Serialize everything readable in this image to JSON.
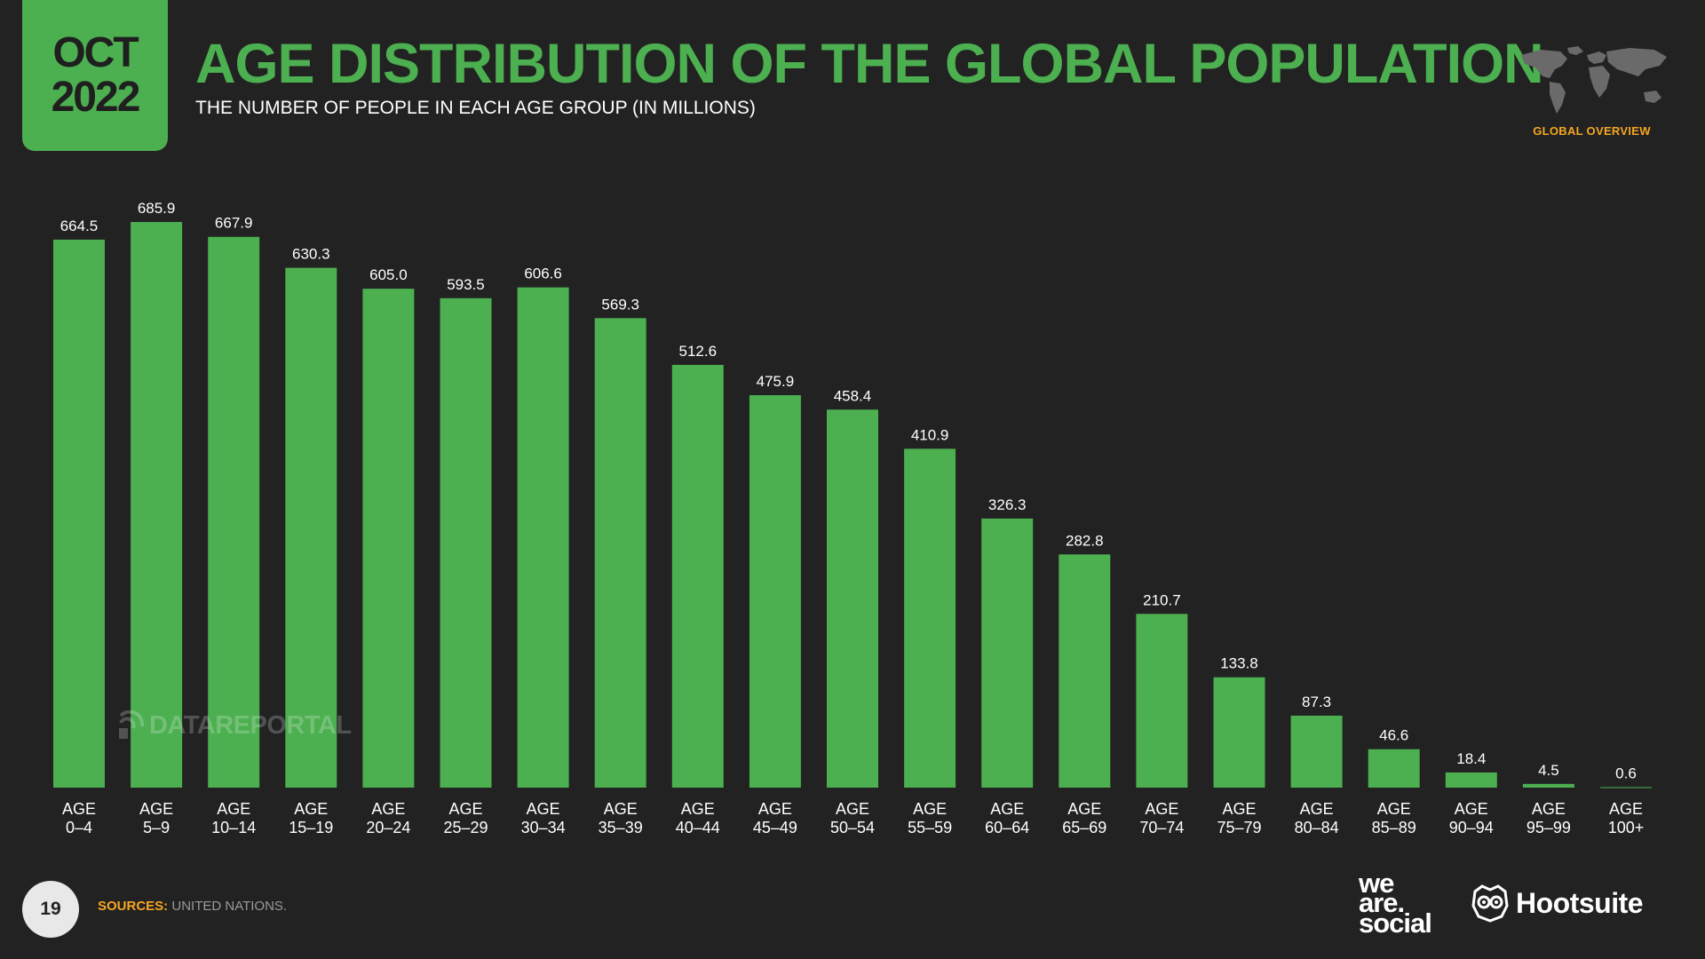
{
  "header": {
    "month": "OCT",
    "year": "2022",
    "title": "AGE DISTRIBUTION OF THE GLOBAL POPULATION",
    "subtitle": "THE NUMBER OF PEOPLE IN EACH AGE GROUP (IN MILLIONS)",
    "section_label": "GLOBAL OVERVIEW"
  },
  "watermark": "DATAREPORTAL",
  "footer": {
    "page_number": "19",
    "sources_label": "SOURCES:",
    "sources_value": "UNITED NATIONS.",
    "logo_line1": "we",
    "logo_line2": "are.",
    "logo_line3": "social",
    "partner": "Hootsuite"
  },
  "colors": {
    "background": "#222222",
    "accent_green": "#4caf50",
    "accent_orange": "#f5a623"
  },
  "icons": [
    "world-map-icon",
    "owl-icon"
  ],
  "chart_data": {
    "type": "bar",
    "title": "AGE DISTRIBUTION OF THE GLOBAL POPULATION",
    "unit": "millions",
    "categories": [
      [
        "AGE",
        "0–4"
      ],
      [
        "AGE",
        "5–9"
      ],
      [
        "AGE",
        "10–14"
      ],
      [
        "AGE",
        "15–19"
      ],
      [
        "AGE",
        "20–24"
      ],
      [
        "AGE",
        "25–29"
      ],
      [
        "AGE",
        "30–34"
      ],
      [
        "AGE",
        "35–39"
      ],
      [
        "AGE",
        "40–44"
      ],
      [
        "AGE",
        "45–49"
      ],
      [
        "AGE",
        "50–54"
      ],
      [
        "AGE",
        "55–59"
      ],
      [
        "AGE",
        "60–64"
      ],
      [
        "AGE",
        "65–69"
      ],
      [
        "AGE",
        "70–74"
      ],
      [
        "AGE",
        "75–79"
      ],
      [
        "AGE",
        "80–84"
      ],
      [
        "AGE",
        "85–89"
      ],
      [
        "AGE",
        "90–94"
      ],
      [
        "AGE",
        "95–99"
      ],
      [
        "AGE",
        "100+"
      ]
    ],
    "values": [
      664.5,
      685.9,
      667.9,
      630.3,
      605.0,
      593.5,
      606.6,
      569.3,
      512.6,
      475.9,
      458.4,
      410.9,
      326.3,
      282.8,
      210.7,
      133.8,
      87.3,
      46.6,
      18.4,
      4.5,
      0.6
    ],
    "value_labels": [
      "664.5",
      "685.9",
      "667.9",
      "630.3",
      "605.0",
      "593.5",
      "606.6",
      "569.3",
      "512.6",
      "475.9",
      "458.4",
      "410.9",
      "326.3",
      "282.8",
      "210.7",
      "133.8",
      "87.3",
      "46.6",
      "18.4",
      "4.5",
      "0.6"
    ],
    "ylim": [
      0,
      685.9
    ],
    "grid": false,
    "legend": "none"
  }
}
